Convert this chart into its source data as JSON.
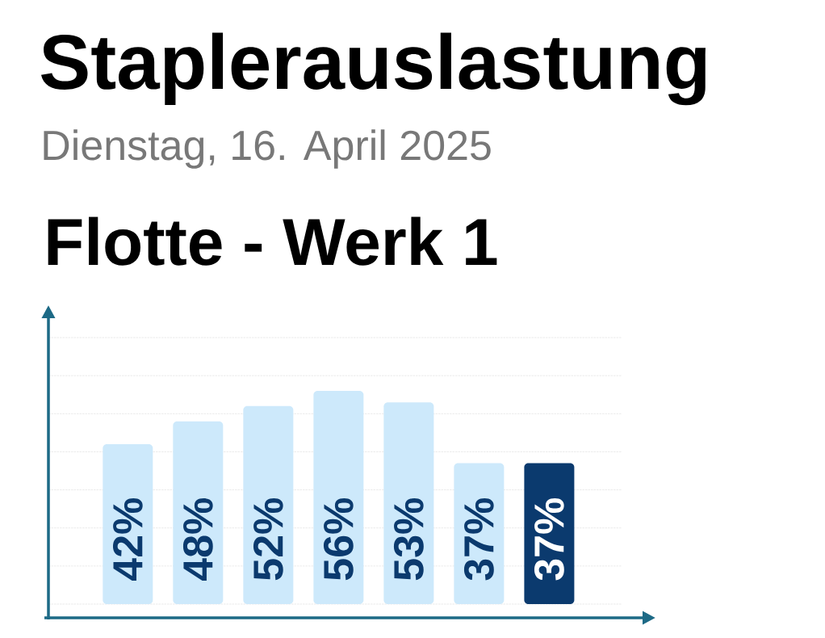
{
  "chart_data": {
    "type": "bar",
    "title": "Staplerauslastung",
    "subtitle": "Dienstag, 16. April 2025",
    "annotations": [
      "Flotte - Werk 1"
    ],
    "categories": [
      null,
      null,
      null,
      null,
      null,
      null,
      null
    ],
    "values": [
      42,
      48,
      52,
      56,
      53,
      37,
      37
    ],
    "value_labels": [
      "42%",
      "48%",
      "52%",
      "56%",
      "53%",
      "37%",
      "37%"
    ],
    "colors": [
      "#cde9fb",
      "#cde9fb",
      "#cde9fb",
      "#cde9fb",
      "#cde9fb",
      "#cde9fb",
      "#0b3a6e"
    ],
    "grid": "y"
  }
}
